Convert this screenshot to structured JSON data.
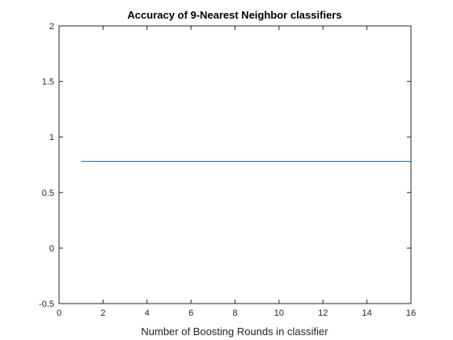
{
  "chart_data": {
    "type": "line",
    "title": "Accuracy of 9-Nearest Neighbor classifiers",
    "xlabel": "Number of Boosting Rounds in classifier",
    "ylabel": "",
    "xlim": [
      0,
      16
    ],
    "ylim": [
      -0.5,
      2
    ],
    "xticks": [
      0,
      2,
      4,
      6,
      8,
      10,
      12,
      14,
      16
    ],
    "yticks": [
      -0.5,
      0,
      0.5,
      1,
      1.5,
      2
    ],
    "xtick_labels": [
      "0",
      "2",
      "4",
      "6",
      "8",
      "10",
      "12",
      "14",
      "16"
    ],
    "ytick_labels": [
      "-0.5",
      "0",
      "0.5",
      "1",
      "1.5",
      "2"
    ],
    "grid": false,
    "series": [
      {
        "color": "#0072BD",
        "x": [
          1,
          2,
          3,
          4,
          5,
          6,
          7,
          8,
          9,
          10,
          11,
          12,
          13,
          14,
          15,
          16
        ],
        "y": [
          0.78,
          0.78,
          0.78,
          0.78,
          0.78,
          0.78,
          0.78,
          0.78,
          0.78,
          0.78,
          0.78,
          0.78,
          0.78,
          0.78,
          0.78,
          0.78
        ]
      }
    ]
  }
}
